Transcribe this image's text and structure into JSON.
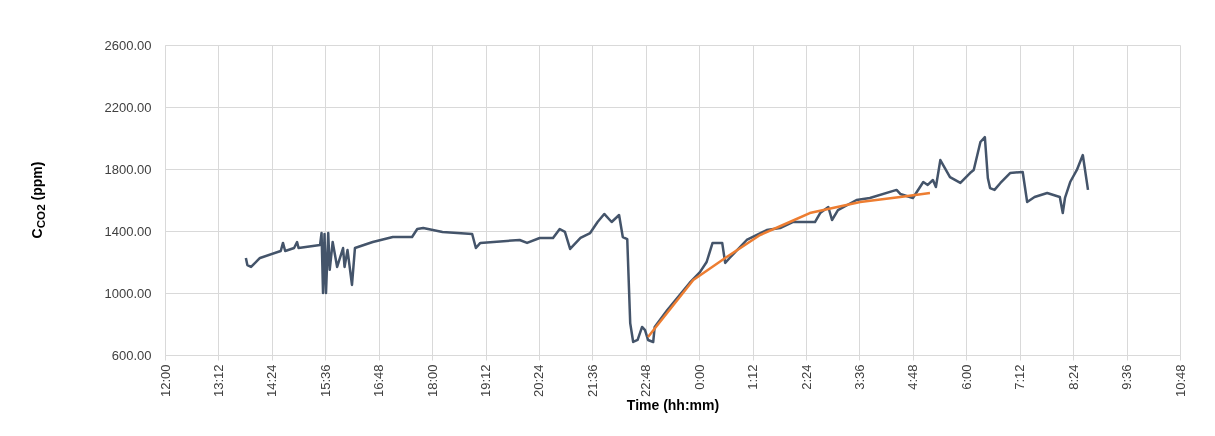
{
  "chart_data": {
    "type": "line",
    "xlabel": "Time (hh:mm)",
    "ylabel": "C$_{CO2}$ (ppm)",
    "xlim": [
      "2000-01-01T12:00",
      "2000-01-02T10:48"
    ],
    "ylim": [
      600,
      2600
    ],
    "xticks": [
      {
        "value": "2000-01-01T12:00",
        "label": "12:00"
      },
      {
        "value": "2000-01-01T13:12",
        "label": "13:12"
      },
      {
        "value": "2000-01-01T14:24",
        "label": "14:24"
      },
      {
        "value": "2000-01-01T15:36",
        "label": "15:36"
      },
      {
        "value": "2000-01-01T16:48",
        "label": "16:48"
      },
      {
        "value": "2000-01-01T18:00",
        "label": "18:00"
      },
      {
        "value": "2000-01-01T19:12",
        "label": "19:12"
      },
      {
        "value": "2000-01-01T20:24",
        "label": "20:24"
      },
      {
        "value": "2000-01-01T21:36",
        "label": "21:36"
      },
      {
        "value": "2000-01-01T22:48",
        "label": "22:48"
      },
      {
        "value": "2000-01-02T00:00",
        "label": "0:00"
      },
      {
        "value": "2000-01-02T01:12",
        "label": "1:12"
      },
      {
        "value": "2000-01-02T02:24",
        "label": "2:24"
      },
      {
        "value": "2000-01-02T03:36",
        "label": "3:36"
      },
      {
        "value": "2000-01-02T04:48",
        "label": "4:48"
      },
      {
        "value": "2000-01-02T06:00",
        "label": "6:00"
      },
      {
        "value": "2000-01-02T07:12",
        "label": "7:12"
      },
      {
        "value": "2000-01-02T08:24",
        "label": "8:24"
      },
      {
        "value": "2000-01-02T09:36",
        "label": "9:36"
      },
      {
        "value": "2000-01-02T10:48",
        "label": "10:48"
      }
    ],
    "yticks": [
      {
        "value": 600,
        "label": "600.00"
      },
      {
        "value": 1000,
        "label": "1000.00"
      },
      {
        "value": 1400,
        "label": "1400.00"
      },
      {
        "value": 1800,
        "label": "1800.00"
      },
      {
        "value": 2200,
        "label": "2200.00"
      },
      {
        "value": 2600,
        "label": "2600.00"
      }
    ],
    "grid": true,
    "marker": "none",
    "line_style": "solid",
    "series": [
      {
        "color": "#44546a",
        "x": [
          "2000-01-01T13:49",
          "2000-01-01T13:51",
          "2000-01-01T13:56",
          "2000-01-01T14:08",
          "2000-01-01T14:36",
          "2000-01-01T14:39",
          "2000-01-01T14:42",
          "2000-01-01T14:54",
          "2000-01-01T14:58",
          "2000-01-01T15:00",
          "2000-01-01T15:29",
          "2000-01-01T15:31",
          "2000-01-01T15:33",
          "2000-01-01T15:35",
          "2000-01-01T15:37",
          "2000-01-01T15:40",
          "2000-01-01T15:42",
          "2000-01-01T15:46",
          "2000-01-01T15:52",
          "2000-01-01T16:00",
          "2000-01-01T16:02",
          "2000-01-01T16:06",
          "2000-01-01T16:12",
          "2000-01-01T16:16",
          "2000-01-01T16:40",
          "2000-01-01T17:07",
          "2000-01-01T17:33",
          "2000-01-01T17:40",
          "2000-01-01T17:48",
          "2000-01-01T18:14",
          "2000-01-01T18:54",
          "2000-01-01T18:59",
          "2000-01-01T19:05",
          "2000-01-01T19:58",
          "2000-01-01T20:08",
          "2000-01-01T20:25",
          "2000-01-01T20:43",
          "2000-01-01T20:52",
          "2000-01-01T20:59",
          "2000-01-01T21:06",
          "2000-01-01T21:20",
          "2000-01-01T21:33",
          "2000-01-01T21:43",
          "2000-01-01T21:52",
          "2000-01-01T22:02",
          "2000-01-01T22:12",
          "2000-01-01T22:17",
          "2000-01-01T22:23",
          "2000-01-01T22:27",
          "2000-01-01T22:31",
          "2000-01-01T22:37",
          "2000-01-01T22:43",
          "2000-01-01T22:47",
          "2000-01-01T22:51",
          "2000-01-01T22:58",
          "2000-01-01T23:00",
          "2000-01-01T23:17",
          "2000-01-01T23:47",
          "2000-01-02T00:01",
          "2000-01-02T00:10",
          "2000-01-02T00:18",
          "2000-01-02T00:31",
          "2000-01-02T00:35",
          "2000-01-02T00:41",
          "2000-01-02T01:04",
          "2000-01-02T01:31",
          "2000-01-02T01:49",
          "2000-01-02T02:06",
          "2000-01-02T02:36",
          "2000-01-02T02:43",
          "2000-01-02T02:54",
          "2000-01-02T02:59",
          "2000-01-02T03:07",
          "2000-01-02T03:32",
          "2000-01-02T03:50",
          "2000-01-02T04:26",
          "2000-01-02T04:31",
          "2000-01-02T04:48",
          "2000-01-02T05:02",
          "2000-01-02T05:08",
          "2000-01-02T05:15",
          "2000-01-02T05:19",
          "2000-01-02T05:25",
          "2000-01-02T05:38",
          "2000-01-02T05:52",
          "2000-01-02T06:05",
          "2000-01-02T06:10",
          "2000-01-02T06:19",
          "2000-01-02T06:25",
          "2000-01-02T06:29",
          "2000-01-02T06:32",
          "2000-01-02T06:38",
          "2000-01-02T06:46",
          "2000-01-02T06:59",
          "2000-01-02T07:16",
          "2000-01-02T07:22",
          "2000-01-02T07:32",
          "2000-01-02T07:49",
          "2000-01-02T08:06",
          "2000-01-02T08:10",
          "2000-01-02T08:13",
          "2000-01-02T08:20",
          "2000-01-02T08:29",
          "2000-01-02T08:37",
          "2000-01-02T08:44"
        ],
        "values": [
          1226,
          1180,
          1168,
          1226,
          1271,
          1323,
          1271,
          1290,
          1329,
          1290,
          1310,
          1387,
          1000,
          1380,
          1000,
          1387,
          1150,
          1329,
          1168,
          1290,
          1168,
          1277,
          1052,
          1290,
          1329,
          1361,
          1361,
          1413,
          1419,
          1394,
          1381,
          1290,
          1323,
          1342,
          1323,
          1355,
          1355,
          1413,
          1394,
          1284,
          1355,
          1387,
          1458,
          1510,
          1458,
          1503,
          1361,
          1348,
          806,
          684,
          697,
          781,
          761,
          697,
          684,
          781,
          890,
          1065,
          1135,
          1200,
          1323,
          1323,
          1194,
          1226,
          1342,
          1406,
          1419,
          1458,
          1458,
          1516,
          1555,
          1471,
          1535,
          1600,
          1613,
          1665,
          1639,
          1613,
          1716,
          1697,
          1729,
          1684,
          1858,
          1748,
          1710,
          1774,
          1794,
          1974,
          2006,
          1742,
          1677,
          1665,
          1710,
          1774,
          1781,
          1587,
          1619,
          1645,
          1619,
          1516,
          1613,
          1716,
          1794,
          1890,
          1665
        ]
      },
      {
        "color": "#ed7d31",
        "x": [
          "2000-01-01T22:51",
          "2000-01-01T23:52",
          "2000-01-02T00:37",
          "2000-01-02T01:22",
          "2000-01-02T02:02",
          "2000-01-02T02:29",
          "2000-01-02T03:37",
          "2000-01-02T04:31",
          "2000-01-02T05:11"
        ],
        "values": [
          716,
          1084,
          1232,
          1374,
          1458,
          1516,
          1587,
          1619,
          1645
        ]
      }
    ]
  }
}
